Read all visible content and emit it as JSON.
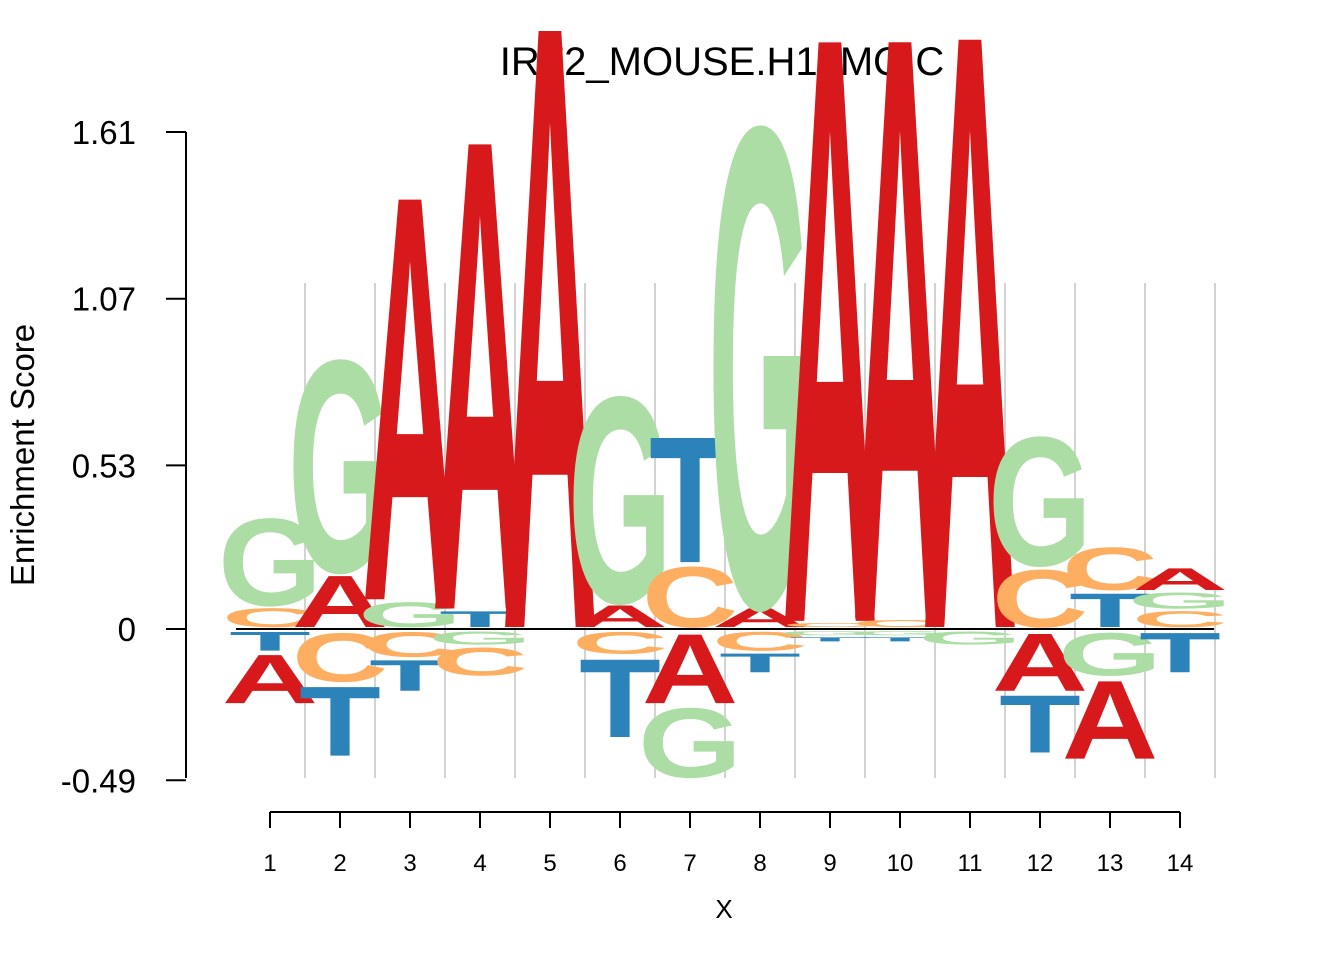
{
  "chart_data": {
    "type": "sequence-logo",
    "title": "IRF2_MOUSE.H10MO.C",
    "xlabel": "X",
    "ylabel": "Enrichment Score",
    "yticks": [
      "1.61",
      "1.07",
      "0.53",
      "0",
      "-0.49"
    ],
    "ytick_values": [
      1.61,
      1.07,
      0.53,
      0,
      -0.49
    ],
    "ylim": [
      -0.49,
      1.61
    ],
    "xticks": [
      "1",
      "2",
      "3",
      "4",
      "5",
      "6",
      "7",
      "8",
      "9",
      "10",
      "11",
      "12",
      "13",
      "14"
    ],
    "colors": {
      "A": "#d7191c",
      "C": "#fdae61",
      "G": "#abdda4",
      "T": "#2b83ba"
    },
    "positions": [
      {
        "pos": 1,
        "stack": [
          {
            "base": "C",
            "value": 0.07
          },
          {
            "base": "G",
            "value": 0.3
          },
          {
            "base": "T",
            "value": -0.07
          },
          {
            "base": "A",
            "value": -0.17
          }
        ]
      },
      {
        "pos": 2,
        "stack": [
          {
            "base": "A",
            "value": 0.18
          },
          {
            "base": "G",
            "value": 0.72
          },
          {
            "base": "C",
            "value": -0.17
          },
          {
            "base": "T",
            "value": -0.24
          }
        ]
      },
      {
        "pos": 3,
        "stack": [
          {
            "base": "G",
            "value": 0.09
          },
          {
            "base": "A",
            "value": 1.37
          },
          {
            "base": "C",
            "value": -0.09
          },
          {
            "base": "T",
            "value": -0.11
          }
        ]
      },
      {
        "pos": 4,
        "stack": [
          {
            "base": "T",
            "value": 0.06
          },
          {
            "base": "A",
            "value": 1.59
          },
          {
            "base": "G",
            "value": -0.05
          },
          {
            "base": "C",
            "value": -0.1
          }
        ]
      },
      {
        "pos": 5,
        "stack": [
          {
            "base": "A",
            "value": 2.04
          }
        ]
      },
      {
        "pos": 6,
        "stack": [
          {
            "base": "A",
            "value": 0.08
          },
          {
            "base": "G",
            "value": 0.7
          },
          {
            "base": "C",
            "value": -0.08
          },
          {
            "base": "T",
            "value": -0.27
          }
        ]
      },
      {
        "pos": 7,
        "stack": [
          {
            "base": "C",
            "value": 0.21
          },
          {
            "base": "T",
            "value": 0.43
          },
          {
            "base": "A",
            "value": -0.24
          },
          {
            "base": "G",
            "value": -0.24
          }
        ]
      },
      {
        "pos": 8,
        "stack": [
          {
            "base": "A",
            "value": 0.07
          },
          {
            "base": "G",
            "value": 1.62
          },
          {
            "base": "C",
            "value": -0.07
          },
          {
            "base": "T",
            "value": -0.07
          }
        ]
      },
      {
        "pos": 9,
        "stack": [
          {
            "base": "C",
            "value": 0.02
          },
          {
            "base": "A",
            "value": 1.98
          },
          {
            "base": "G",
            "value": -0.02
          },
          {
            "base": "T",
            "value": -0.02
          }
        ]
      },
      {
        "pos": 10,
        "stack": [
          {
            "base": "C",
            "value": 0.03
          },
          {
            "base": "A",
            "value": 1.97
          },
          {
            "base": "G",
            "value": -0.02
          },
          {
            "base": "T",
            "value": -0.02
          }
        ]
      },
      {
        "pos": 11,
        "stack": [
          {
            "base": "A",
            "value": 2.01
          },
          {
            "base": "G",
            "value": -0.05
          }
        ]
      },
      {
        "pos": 12,
        "stack": [
          {
            "base": "C",
            "value": 0.2
          },
          {
            "base": "G",
            "value": 0.44
          },
          {
            "base": "A",
            "value": -0.2
          },
          {
            "base": "T",
            "value": -0.2
          }
        ]
      },
      {
        "pos": 13,
        "stack": [
          {
            "base": "T",
            "value": 0.12
          },
          {
            "base": "C",
            "value": 0.15
          },
          {
            "base": "G",
            "value": -0.15
          },
          {
            "base": "A",
            "value": -0.27
          }
        ]
      },
      {
        "pos": 14,
        "stack": [
          {
            "base": "C",
            "value": 0.06
          },
          {
            "base": "G",
            "value": 0.06
          },
          {
            "base": "A",
            "value": 0.08
          },
          {
            "base": "T",
            "value": -0.14
          }
        ]
      }
    ]
  }
}
